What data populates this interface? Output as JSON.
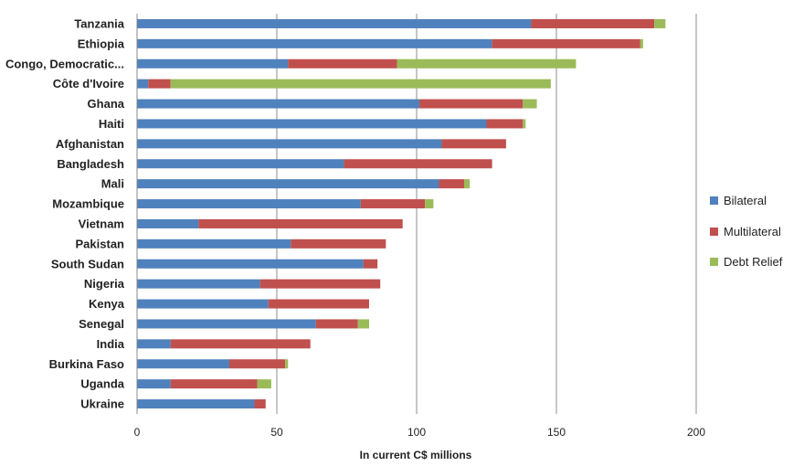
{
  "chart_data": {
    "type": "bar",
    "orientation": "horizontal",
    "stacked": true,
    "categories": [
      "Tanzania",
      "Ethiopia",
      "Congo, Democratic...",
      "Côte d'Ivoire",
      "Ghana",
      "Haiti",
      "Afghanistan",
      "Bangladesh",
      "Mali",
      "Mozambique",
      "Vietnam",
      "Pakistan",
      "South Sudan",
      "Nigeria",
      "Kenya",
      "Senegal",
      "India",
      "Burkina Faso",
      "Uganda",
      "Ukraine"
    ],
    "series": [
      {
        "name": "Bilateral",
        "color": "#4F81BD",
        "values": [
          141,
          127,
          54,
          4,
          101,
          125,
          109,
          74,
          108,
          80,
          22,
          55,
          81,
          44,
          47,
          64,
          12,
          33,
          12,
          42
        ]
      },
      {
        "name": "Multilateral",
        "color": "#C0504D",
        "values": [
          44,
          53,
          39,
          8,
          37,
          13,
          23,
          53,
          9,
          23,
          73,
          34,
          5,
          43,
          36,
          15,
          50,
          20,
          31,
          4
        ]
      },
      {
        "name": "Debt Relief",
        "color": "#9BBB59",
        "values": [
          4,
          1,
          64,
          136,
          5,
          1,
          0,
          0,
          2,
          3,
          0,
          0,
          0,
          0,
          0,
          4,
          0,
          1,
          5,
          0
        ]
      }
    ],
    "xlabel": "In current C$ millions",
    "xlim": [
      0,
      200
    ],
    "xticks": [
      0,
      50,
      100,
      150,
      200
    ],
    "grid": "vertical",
    "legend_position": "right"
  }
}
